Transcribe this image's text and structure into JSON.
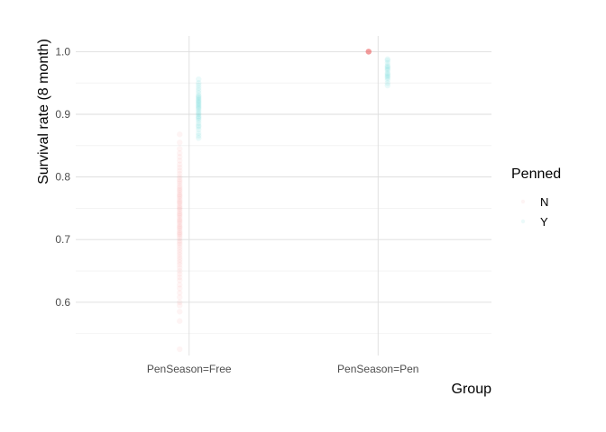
{
  "chart_data": {
    "type": "scatter",
    "title": "",
    "xlabel": "Group",
    "ylabel": "Survival rate (8 month)",
    "categories": [
      "PenSeason=Free",
      "PenSeason=Pen"
    ],
    "ylim": [
      0.515,
      1.025
    ],
    "yticks": [
      0.6,
      0.7,
      0.8,
      0.9,
      1.0
    ],
    "ytick_labels": [
      "0.6",
      "0.7",
      "0.8",
      "0.9",
      "1.0"
    ],
    "grid": true,
    "legend": {
      "title": "Penned",
      "placement": "right",
      "entries": [
        "N",
        "Y"
      ]
    },
    "point_alpha": 0.08,
    "series": [
      {
        "name": "N",
        "color": "#F8766D",
        "points": [
          {
            "category": "PenSeason=Free",
            "values": [
              0.525,
              0.57,
              0.585,
              0.595,
              0.6,
              0.608,
              0.615,
              0.622,
              0.628,
              0.635,
              0.64,
              0.645,
              0.65,
              0.655,
              0.66,
              0.664,
              0.668,
              0.672,
              0.676,
              0.68,
              0.684,
              0.688,
              0.692,
              0.695,
              0.698,
              0.702,
              0.705,
              0.708,
              0.71,
              0.712,
              0.715,
              0.718,
              0.72,
              0.722,
              0.725,
              0.728,
              0.73,
              0.732,
              0.735,
              0.738,
              0.74,
              0.742,
              0.745,
              0.748,
              0.75,
              0.752,
              0.755,
              0.758,
              0.76,
              0.762,
              0.765,
              0.768,
              0.77,
              0.772,
              0.775,
              0.778,
              0.78,
              0.783,
              0.786,
              0.79,
              0.793,
              0.796,
              0.8,
              0.805,
              0.81,
              0.815,
              0.82,
              0.826,
              0.832,
              0.838,
              0.845,
              0.855,
              0.868
            ]
          },
          {
            "category": "PenSeason=Pen",
            "values": [
              1.0,
              1.0,
              1.0,
              1.0,
              1.0,
              1.0,
              1.0,
              1.0,
              1.0,
              1.0,
              1.0,
              1.0,
              1.0,
              1.0
            ]
          }
        ]
      },
      {
        "name": "Y",
        "color": "#00BFC4",
        "points": [
          {
            "category": "PenSeason=Free",
            "values": [
              0.862,
              0.866,
              0.87,
              0.876,
              0.88,
              0.882,
              0.886,
              0.89,
              0.893,
              0.895,
              0.897,
              0.9,
              0.902,
              0.905,
              0.908,
              0.91,
              0.912,
              0.914,
              0.916,
              0.918,
              0.92,
              0.922,
              0.924,
              0.926,
              0.928,
              0.93,
              0.934,
              0.938,
              0.942,
              0.946,
              0.95,
              0.956
            ]
          },
          {
            "category": "PenSeason=Pen",
            "values": [
              0.946,
              0.95,
              0.955,
              0.958,
              0.96,
              0.962,
              0.964,
              0.966,
              0.97,
              0.972,
              0.974,
              0.976,
              0.978,
              0.982,
              0.986,
              0.988
            ]
          }
        ]
      }
    ]
  }
}
